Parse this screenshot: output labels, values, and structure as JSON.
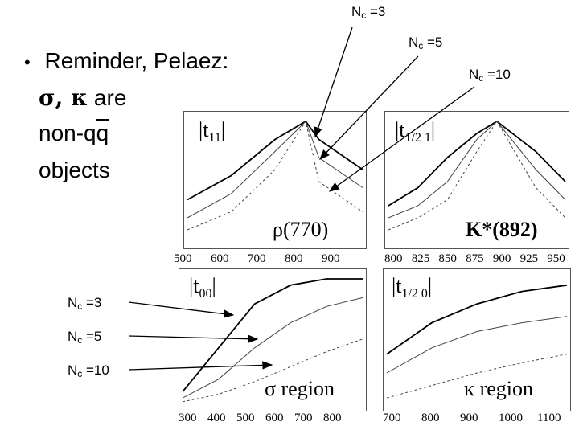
{
  "bullet": {
    "marker": "•",
    "line1": "Reminder, Pelaez:",
    "greek": "σ, κ",
    "are": " are",
    "non": "non-q",
    "qbar": "q",
    "line3": "objects"
  },
  "nc_labels": {
    "top_3": "N",
    "top_5": "N",
    "top_10": "N",
    "sub": "c",
    "v3": " =3",
    "v5": " =5",
    "v10": " =10",
    "left_3": " =3",
    "left_5": " =5",
    "left_10": " =10"
  },
  "panels": {
    "rho": {
      "title": "|t",
      "title_sub": "11",
      "title_end": "|",
      "annotation": "ρ(770)",
      "ticks": [
        "500",
        "600",
        "700",
        "800",
        "900"
      ]
    },
    "kstar": {
      "title": "|t",
      "title_sub": "1/2 1",
      "title_end": "|",
      "annotation": "K*(892)",
      "ticks": [
        "800",
        "825",
        "850",
        "875",
        "900",
        "925",
        "950"
      ]
    },
    "sigma": {
      "title": "|t",
      "title_sub": "00",
      "title_end": "|",
      "annotation": "σ region",
      "ticks": [
        "300",
        "400",
        "500",
        "600",
        "700",
        "800"
      ]
    },
    "kappa": {
      "title": "|t",
      "title_sub": "1/2 0",
      "title_end": "|",
      "annotation": "κ region",
      "ticks": [
        "700",
        "800",
        "900",
        "1000",
        "1100"
      ]
    }
  },
  "chart_data": [
    {
      "type": "line",
      "x": [
        500,
        600,
        700,
        770,
        800,
        900
      ],
      "series": [
        {
          "name": "Nc=3",
          "values": [
            0.35,
            0.55,
            0.85,
            1.0,
            0.85,
            0.6
          ]
        },
        {
          "name": "Nc=5",
          "values": [
            0.2,
            0.4,
            0.75,
            1.0,
            0.7,
            0.45
          ]
        },
        {
          "name": "Nc=10",
          "values": [
            0.1,
            0.25,
            0.6,
            1.0,
            0.5,
            0.25
          ]
        }
      ]
    },
    {
      "type": "line",
      "x": [
        800,
        825,
        850,
        875,
        892,
        925,
        950
      ],
      "series": [
        {
          "name": "Nc=3",
          "values": [
            0.3,
            0.45,
            0.7,
            0.9,
            1.0,
            0.75,
            0.5
          ]
        },
        {
          "name": "Nc=5",
          "values": [
            0.2,
            0.3,
            0.5,
            0.85,
            1.0,
            0.6,
            0.35
          ]
        },
        {
          "name": "Nc=10",
          "values": [
            0.1,
            0.2,
            0.35,
            0.75,
            1.0,
            0.45,
            0.2
          ]
        }
      ]
    },
    {
      "type": "line",
      "x": [
        300,
        400,
        500,
        600,
        700,
        800
      ],
      "series": [
        {
          "name": "Nc=3",
          "values": [
            0.1,
            0.45,
            0.8,
            0.95,
            1.0,
            1.0
          ]
        },
        {
          "name": "Nc=5",
          "values": [
            0.05,
            0.2,
            0.45,
            0.65,
            0.78,
            0.85
          ]
        },
        {
          "name": "Nc=10",
          "values": [
            0.02,
            0.08,
            0.18,
            0.3,
            0.42,
            0.52
          ]
        }
      ]
    },
    {
      "type": "line",
      "x": [
        700,
        800,
        900,
        1000,
        1100
      ],
      "series": [
        {
          "name": "Nc=3",
          "values": [
            0.4,
            0.65,
            0.8,
            0.9,
            0.95
          ]
        },
        {
          "name": "Nc=5",
          "values": [
            0.25,
            0.45,
            0.58,
            0.65,
            0.7
          ]
        },
        {
          "name": "Nc=10",
          "values": [
            0.05,
            0.15,
            0.25,
            0.33,
            0.4
          ]
        }
      ]
    }
  ]
}
